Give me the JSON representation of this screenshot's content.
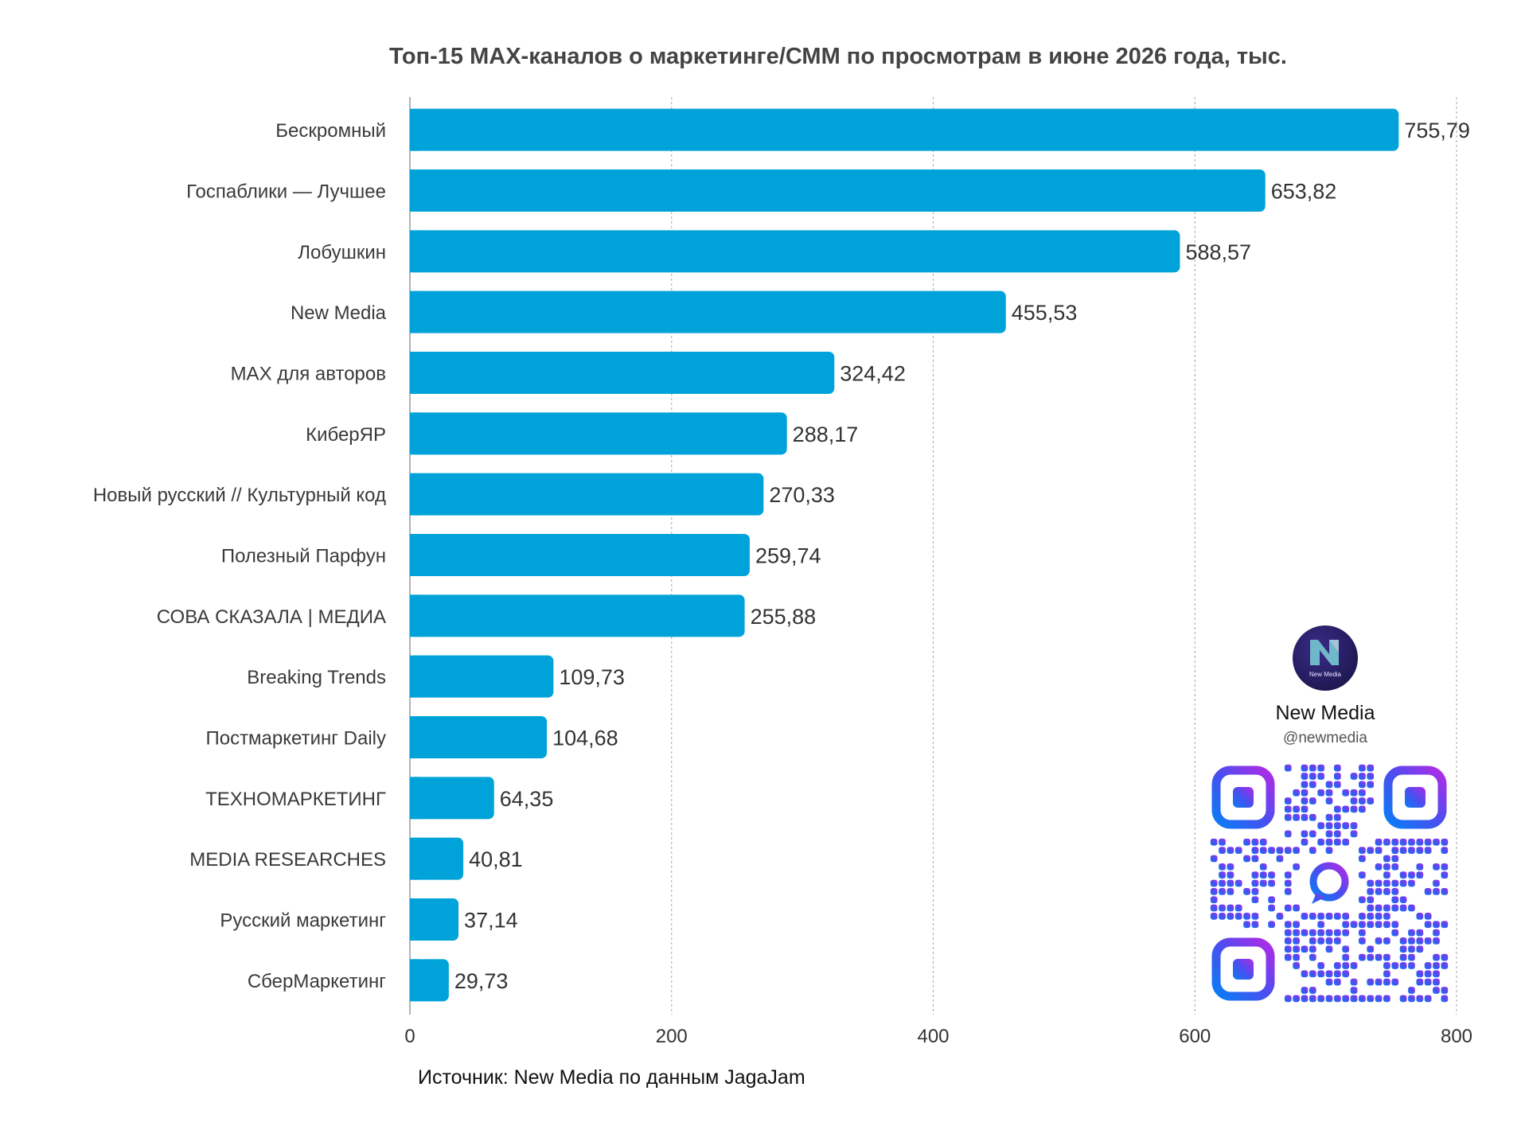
{
  "chart_data": {
    "type": "bar",
    "orientation": "horizontal",
    "title": "Топ-15 MAX-каналов о маркетинге/СММ по просмотрам в июне 2026 года, тыс.",
    "categories": [
      "Бескромный",
      "Госпаблики — Лучшее",
      "Лобушкин",
      "New Media",
      "MAX для авторов",
      "КиберЯР",
      "Новый русский // Культурный код",
      "Полезный Парфун",
      "СОВА СКАЗАЛА | МЕДИА",
      "Breaking Trends",
      "Постмаркетинг Daily",
      "ТЕХНОМАРКЕТИНГ",
      "MEDIA RESEARCHES",
      "Русский маркетинг",
      "СберМаркетинг"
    ],
    "values": [
      755.79,
      653.82,
      588.57,
      455.53,
      324.42,
      288.17,
      270.33,
      259.74,
      255.88,
      109.73,
      104.68,
      64.35,
      40.81,
      37.14,
      29.73
    ],
    "value_labels": [
      "755,79",
      "653,82",
      "588,57",
      "455,53",
      "324,42",
      "288,17",
      "270,33",
      "259,74",
      "255,88",
      "109,73",
      "104,68",
      "64,35",
      "40,81",
      "37,14",
      "29,73"
    ],
    "xlim": [
      0,
      800
    ],
    "xticks": [
      "0",
      "200",
      "400",
      "600",
      "800"
    ],
    "xlabel": "",
    "ylabel": "",
    "grid": true,
    "bar_color": "#00a3d9"
  },
  "source": "Источник: New Media по данным JagaJam",
  "brand": {
    "logo_text": "New Media",
    "name": "New Media",
    "handle": "@newmedia",
    "logo_icon": "n-letter-logo-icon",
    "qr_icon": "qr-code-icon"
  }
}
